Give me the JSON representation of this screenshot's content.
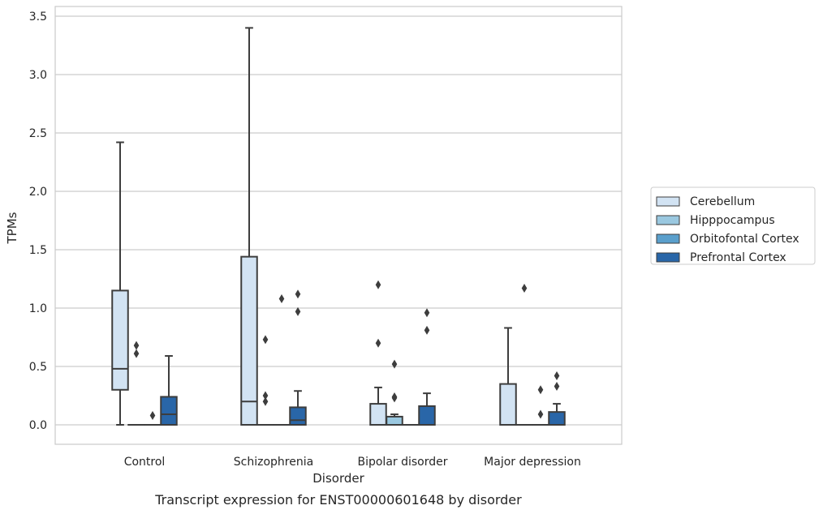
{
  "chart_data": {
    "type": "box",
    "caption": "Transcript expression for ENST00000601648 by disorder",
    "xlabel": "Disorder",
    "ylabel": "TPMs",
    "ylim": [
      -0.17,
      3.57
    ],
    "yticks": [
      "0.0",
      "0.5",
      "1.0",
      "1.5",
      "2.0",
      "2.5",
      "3.0",
      "3.5"
    ],
    "ytick_values": [
      0,
      0.5,
      1.0,
      1.5,
      2.0,
      2.5,
      3.0,
      3.5
    ],
    "categories": [
      "Control",
      "Schizophrenia",
      "Bipolar disorder",
      "Major depression"
    ],
    "grid": "horizontal",
    "legend_position": "right",
    "series": [
      {
        "name": "Cerebellum",
        "color": "#d2e3f3",
        "boxes": [
          {
            "q1": 0.3,
            "median": 0.48,
            "q3": 1.15,
            "whislo": 0.0,
            "whishi": 2.42,
            "fliers": []
          },
          {
            "q1": 0.0,
            "median": 0.2,
            "q3": 1.44,
            "whislo": 0.0,
            "whishi": 3.4,
            "fliers": []
          },
          {
            "q1": 0.0,
            "median": 0.0,
            "q3": 0.18,
            "whislo": 0.0,
            "whishi": 0.32,
            "fliers": [
              0.7,
              1.2
            ]
          },
          {
            "q1": 0.0,
            "median": 0.0,
            "q3": 0.35,
            "whislo": 0.0,
            "whishi": 0.83,
            "fliers": []
          }
        ]
      },
      {
        "name": "Hipppocampus",
        "color": "#9ac8e0",
        "boxes": [
          {
            "q1": 0.0,
            "median": 0.0,
            "q3": 0.0,
            "whislo": 0.0,
            "whishi": 0.0,
            "fliers": [
              0.61,
              0.68
            ]
          },
          {
            "q1": 0.0,
            "median": 0.0,
            "q3": 0.0,
            "whislo": 0.0,
            "whishi": 0.0,
            "fliers": [
              0.2,
              0.25,
              0.73
            ]
          },
          {
            "q1": 0.0,
            "median": 0.0,
            "q3": 0.07,
            "whislo": 0.0,
            "whishi": 0.09,
            "fliers": [
              0.23,
              0.24,
              0.52
            ]
          },
          {
            "q1": 0.0,
            "median": 0.0,
            "q3": 0.0,
            "whislo": 0.0,
            "whishi": 0.0,
            "fliers": [
              1.17
            ]
          }
        ]
      },
      {
        "name": "Orbitofontal Cortex",
        "color": "#5a9fcc",
        "boxes": [
          {
            "q1": 0.0,
            "median": 0.0,
            "q3": 0.0,
            "whislo": 0.0,
            "whishi": 0.0,
            "fliers": [
              0.08
            ]
          },
          {
            "q1": 0.0,
            "median": 0.0,
            "q3": 0.0,
            "whislo": 0.0,
            "whishi": 0.0,
            "fliers": [
              1.08
            ]
          },
          {
            "q1": 0.0,
            "median": 0.0,
            "q3": 0.0,
            "whislo": 0.0,
            "whishi": 0.0,
            "fliers": []
          },
          {
            "q1": 0.0,
            "median": 0.0,
            "q3": 0.0,
            "whislo": 0.0,
            "whishi": 0.0,
            "fliers": [
              0.09,
              0.3
            ]
          }
        ]
      },
      {
        "name": "Prefrontal Cortex",
        "color": "#2966a8",
        "boxes": [
          {
            "q1": 0.0,
            "median": 0.09,
            "q3": 0.24,
            "whislo": 0.0,
            "whishi": 0.59,
            "fliers": []
          },
          {
            "q1": 0.0,
            "median": 0.04,
            "q3": 0.15,
            "whislo": 0.0,
            "whishi": 0.29,
            "fliers": [
              0.97,
              1.12
            ]
          },
          {
            "q1": 0.0,
            "median": 0.0,
            "q3": 0.16,
            "whislo": 0.0,
            "whishi": 0.27,
            "fliers": [
              0.81,
              0.96
            ]
          },
          {
            "q1": 0.0,
            "median": 0.0,
            "q3": 0.11,
            "whislo": 0.0,
            "whishi": 0.18,
            "fliers": [
              0.33,
              0.42
            ]
          }
        ]
      }
    ]
  }
}
